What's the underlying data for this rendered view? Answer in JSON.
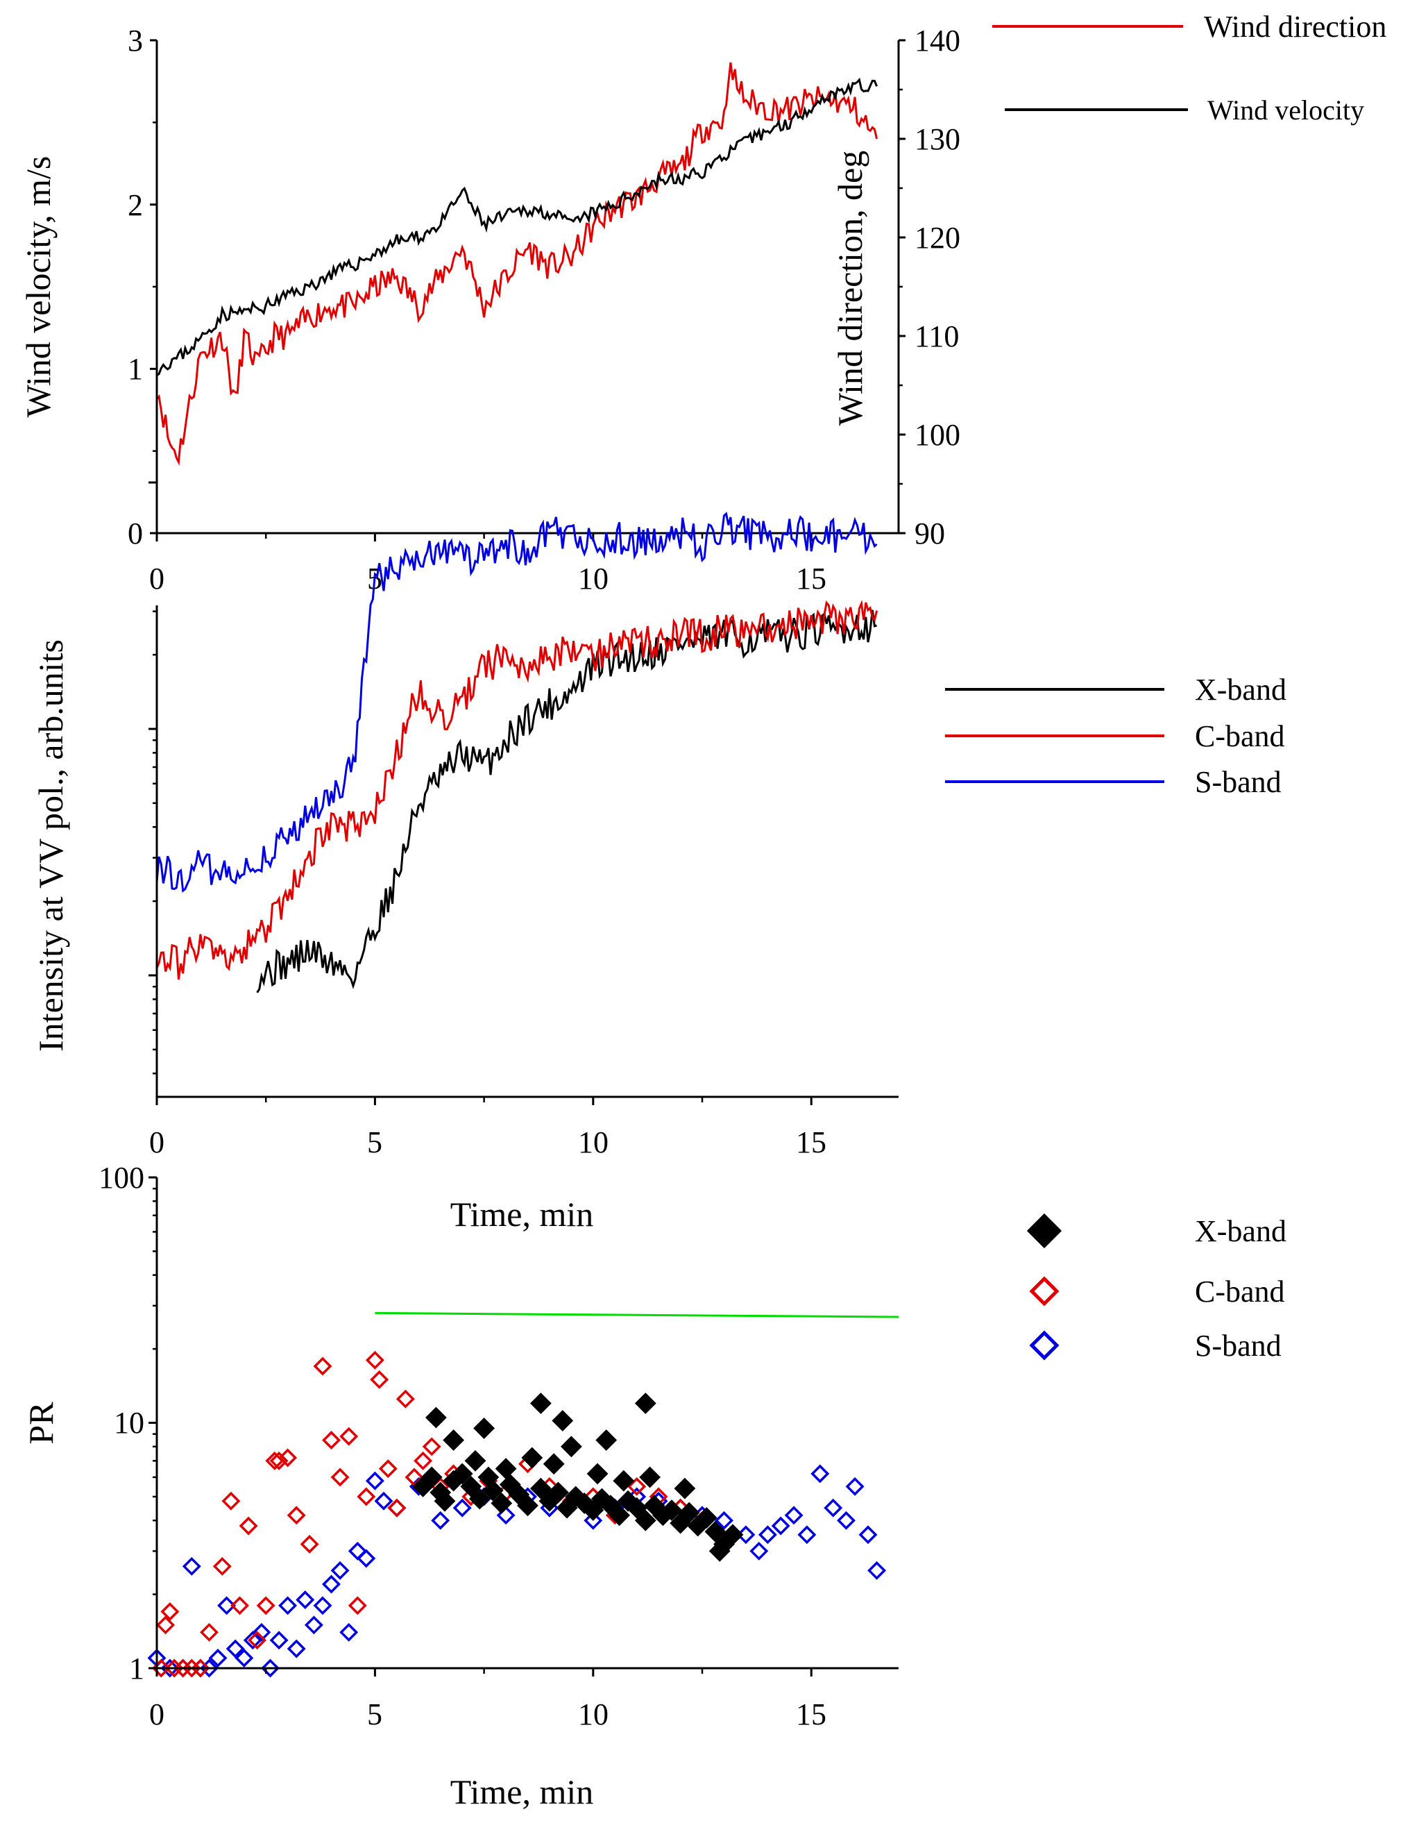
{
  "chart_data": [
    {
      "id": "wind",
      "type": "line",
      "xlabel": "",
      "ylabel": "Wind velocity, m/s",
      "y2label": "Wind direction, deg",
      "xlim": [
        0,
        17
      ],
      "ylim": [
        0,
        3
      ],
      "y2lim": [
        90,
        140
      ],
      "x_ticks": [
        "0",
        "5",
        "10",
        "15"
      ],
      "y_ticks": [
        "0",
        "1",
        "2",
        "3"
      ],
      "y2_ticks": [
        "90",
        "100",
        "110",
        "120",
        "130",
        "140"
      ],
      "legend": [
        {
          "name": "Wind direction",
          "color": "#e00000"
        },
        {
          "name": "Wind velocity",
          "color": "#000000"
        }
      ],
      "series": [
        {
          "name": "Wind velocity",
          "axis": "left",
          "color": "#000000",
          "x": [
            0,
            0.5,
            1,
            1.5,
            2,
            2.5,
            3,
            3.5,
            4,
            4.5,
            5,
            5.5,
            6,
            6.5,
            7,
            7.5,
            8,
            8.5,
            9,
            9.5,
            10,
            10.5,
            11,
            11.5,
            12,
            12.5,
            13,
            13.5,
            14,
            14.5,
            15,
            15.5,
            16,
            16.5
          ],
          "y": [
            1.0,
            1.07,
            1.18,
            1.33,
            1.35,
            1.38,
            1.45,
            1.5,
            1.58,
            1.63,
            1.7,
            1.78,
            1.8,
            1.88,
            2.08,
            1.88,
            1.93,
            1.97,
            1.95,
            1.88,
            1.95,
            2.0,
            2.08,
            2.15,
            2.15,
            2.2,
            2.3,
            2.38,
            2.45,
            2.5,
            2.6,
            2.68,
            2.72,
            2.72
          ]
        },
        {
          "name": "Wind direction",
          "axis": "right",
          "color": "#e00000",
          "x": [
            0,
            0.3,
            0.5,
            1,
            1.5,
            1.8,
            2,
            2.3,
            2.7,
            3,
            3.5,
            4,
            4.5,
            5,
            5.5,
            6,
            6.5,
            7,
            7.5,
            8,
            8.5,
            9,
            9.5,
            10,
            10.5,
            11,
            11.5,
            12,
            12.5,
            13,
            13.1,
            13.5,
            14,
            14.5,
            15,
            15.5,
            16,
            16.5
          ],
          "y": [
            105,
            99,
            98,
            108,
            110,
            103,
            110,
            107,
            110,
            110,
            112,
            113,
            113,
            115,
            116,
            113,
            116,
            119,
            113,
            116,
            119,
            117,
            118,
            121,
            123,
            124,
            126,
            127,
            131,
            132,
            137,
            134,
            133,
            133,
            134,
            134,
            133,
            130
          ]
        }
      ]
    },
    {
      "id": "intensity",
      "type": "line",
      "xlabel": "",
      "ylabel": "Intensity at VV pol., arb.units",
      "yscale": "log",
      "xlim": [
        0,
        17
      ],
      "x_ticks": [
        "0",
        "5",
        "10",
        "15"
      ],
      "legend": [
        {
          "name": "X-band",
          "color": "#000000"
        },
        {
          "name": "C-band",
          "color": "#e00000"
        },
        {
          "name": "S-band",
          "color": "#0000e0"
        }
      ],
      "series": [
        {
          "name": "X-band",
          "color": "#000000",
          "x": [
            2.3,
            3,
            3.5,
            4,
            4.5,
            5,
            5.5,
            6,
            6.5,
            7,
            7.5,
            8,
            8.5,
            9,
            9.5,
            10,
            10.5,
            11,
            11.5,
            12,
            12.5,
            13,
            13.5,
            14,
            14.5,
            15,
            15.5,
            16,
            16.5
          ],
          "y": [
            -1.0,
            -0.95,
            -0.9,
            -0.95,
            -1.0,
            -0.8,
            -0.6,
            -0.3,
            -0.2,
            -0.1,
            -0.15,
            -0.05,
            0.05,
            0.1,
            0.15,
            0.25,
            0.28,
            0.3,
            0.32,
            0.35,
            0.35,
            0.38,
            0.36,
            0.38,
            0.38,
            0.4,
            0.4,
            0.42,
            0.42
          ]
        },
        {
          "name": "C-band",
          "color": "#e00000",
          "x": [
            0,
            0.5,
            1,
            1.5,
            2,
            2.5,
            3,
            3.5,
            4,
            4.5,
            5,
            5.5,
            6,
            6.5,
            7,
            7.5,
            8,
            8.5,
            9,
            9.5,
            10,
            10.5,
            11,
            11.5,
            12,
            12.5,
            13,
            13.5,
            14,
            14.5,
            15,
            15.5,
            16,
            16.5
          ],
          "y": [
            -0.9,
            -0.95,
            -0.85,
            -0.95,
            -0.9,
            -0.8,
            -0.7,
            -0.5,
            -0.4,
            -0.4,
            -0.35,
            -0.1,
            0.15,
            0.05,
            0.1,
            0.25,
            0.3,
            0.25,
            0.3,
            0.32,
            0.3,
            0.35,
            0.35,
            0.35,
            0.38,
            0.38,
            0.4,
            0.4,
            0.42,
            0.42,
            0.43,
            0.45,
            0.45,
            0.48
          ]
        },
        {
          "name": "S-band",
          "color": "#0000e0",
          "x": [
            0,
            0.5,
            1,
            1.5,
            2,
            2.5,
            3,
            3.5,
            4,
            4.5,
            5,
            5.5,
            6,
            6.5,
            7,
            7.5,
            8,
            8.5,
            9,
            9.5,
            10,
            10.5,
            11,
            11.5,
            12,
            12.5,
            13,
            13.5,
            14,
            14.5,
            15,
            15.5,
            16,
            16.5
          ],
          "y": [
            -0.55,
            -0.6,
            -0.55,
            -0.6,
            -0.6,
            -0.5,
            -0.45,
            -0.35,
            -0.3,
            -0.15,
            0.6,
            0.65,
            0.7,
            0.72,
            0.7,
            0.7,
            0.75,
            0.7,
            0.8,
            0.78,
            0.75,
            0.78,
            0.75,
            0.78,
            0.8,
            0.75,
            0.82,
            0.8,
            0.78,
            0.8,
            0.78,
            0.78,
            0.78,
            0.75
          ]
        }
      ]
    },
    {
      "id": "pr",
      "type": "scatter",
      "xlabel": "Time, min",
      "xlabel_upper": "Time, min",
      "ylabel": "PR",
      "yscale": "log",
      "xlim": [
        0,
        17
      ],
      "ylim": [
        1,
        100
      ],
      "x_ticks": [
        "0",
        "5",
        "10",
        "15"
      ],
      "y_ticks": [
        "1",
        "10",
        "100"
      ],
      "legend": [
        {
          "name": "X-band",
          "color": "#000000",
          "marker": "filled-diamond"
        },
        {
          "name": "C-band",
          "color": "#e00000",
          "marker": "open-diamond"
        },
        {
          "name": "S-band",
          "color": "#0000e0",
          "marker": "open-diamond"
        }
      ],
      "reference_line": {
        "color": "#00dd00",
        "x": [
          5,
          17
        ],
        "y": [
          28,
          27
        ]
      },
      "series": [
        {
          "name": "X-band",
          "color": "#000000",
          "marker": "filled-diamond",
          "x": [
            6.1,
            6.3,
            6.5,
            6.6,
            6.8,
            7.0,
            7.2,
            7.4,
            7.6,
            7.7,
            7.9,
            8.1,
            8.3,
            8.5,
            8.8,
            9.0,
            9.2,
            9.4,
            9.6,
            9.8,
            10.0,
            10.2,
            10.4,
            10.6,
            10.8,
            11.0,
            11.2,
            11.4,
            11.6,
            11.8,
            12.0,
            12.2,
            12.4,
            12.6,
            12.8,
            13.0,
            13.2,
            6.4,
            6.8,
            7.3,
            8.0,
            8.6,
            9.1,
            9.5,
            10.1,
            10.7,
            11.3,
            12.1,
            12.9,
            7.5,
            8.8,
            9.3,
            10.3,
            11.2
          ],
          "y": [
            5.5,
            6.0,
            5.2,
            4.8,
            5.8,
            6.2,
            5.5,
            4.9,
            6.0,
            5.3,
            4.7,
            5.6,
            5.1,
            4.6,
            5.4,
            4.8,
            5.2,
            4.5,
            5.0,
            4.7,
            4.4,
            4.9,
            4.6,
            4.2,
            4.8,
            4.5,
            4.0,
            4.6,
            4.2,
            4.4,
            3.9,
            4.3,
            3.8,
            4.1,
            3.6,
            3.2,
            3.5,
            10.5,
            8.5,
            7.0,
            6.5,
            7.2,
            6.8,
            8.0,
            6.2,
            5.8,
            6.0,
            5.4,
            3.0,
            9.5,
            12.0,
            10.2,
            8.5,
            12.0
          ]
        },
        {
          "name": "C-band",
          "color": "#e00000",
          "marker": "open-diamond",
          "x": [
            0.1,
            0.2,
            0.3,
            0.4,
            0.6,
            0.8,
            1.0,
            1.2,
            1.5,
            1.7,
            1.9,
            2.1,
            2.3,
            2.5,
            2.7,
            2.8,
            3.0,
            3.2,
            3.5,
            3.8,
            4.0,
            4.2,
            4.4,
            4.6,
            4.8,
            5.0,
            5.1,
            5.3,
            5.5,
            5.7,
            5.9,
            6.1,
            6.3,
            6.5,
            6.8,
            7.2,
            7.6,
            8.0,
            8.5,
            9.0,
            9.5,
            10.0,
            10.5,
            11.0,
            11.5,
            12.0,
            12.5,
            13.0
          ],
          "y": [
            1.0,
            1.5,
            1.7,
            1.0,
            1.0,
            1.0,
            1.0,
            1.4,
            2.6,
            4.8,
            1.8,
            3.8,
            1.3,
            1.8,
            7.0,
            7.0,
            7.2,
            4.2,
            3.2,
            17.0,
            8.5,
            6.0,
            8.8,
            1.8,
            5.0,
            18.0,
            15.0,
            6.5,
            4.5,
            12.5,
            6.0,
            7.0,
            8.0,
            5.5,
            6.2,
            5.0,
            5.8,
            5.2,
            6.8,
            5.5,
            4.8,
            5.0,
            4.2,
            5.5,
            5.0,
            4.5,
            4.0,
            3.2
          ]
        },
        {
          "name": "S-band",
          "color": "#0000e0",
          "marker": "open-diamond",
          "x": [
            0.0,
            0.3,
            0.6,
            0.8,
            1.0,
            1.2,
            1.4,
            1.6,
            1.8,
            2.0,
            2.2,
            2.4,
            2.6,
            2.8,
            3.0,
            3.2,
            3.4,
            3.6,
            3.8,
            4.0,
            4.2,
            4.4,
            4.6,
            4.8,
            5.0,
            5.2,
            5.5,
            6.0,
            6.5,
            7.0,
            7.5,
            8.0,
            8.5,
            9.0,
            9.5,
            10.0,
            10.5,
            11.0,
            11.5,
            12.0,
            12.5,
            13.0,
            13.5,
            13.8,
            14.0,
            14.3,
            14.6,
            14.9,
            15.2,
            15.5,
            15.8,
            16.0,
            16.3,
            16.5
          ],
          "y": [
            1.1,
            1.0,
            1.0,
            2.6,
            1.0,
            1.0,
            1.1,
            1.8,
            1.2,
            1.1,
            1.3,
            1.4,
            1.0,
            1.3,
            1.8,
            1.2,
            1.9,
            1.5,
            1.8,
            2.2,
            2.5,
            1.4,
            3.0,
            2.8,
            5.8,
            4.8,
            4.5,
            5.5,
            4.0,
            4.5,
            5.0,
            4.2,
            5.0,
            4.5,
            4.8,
            4.0,
            4.5,
            5.0,
            4.8,
            4.5,
            4.2,
            4.0,
            3.5,
            3.0,
            3.5,
            3.8,
            4.2,
            3.5,
            6.2,
            4.5,
            4.0,
            5.5,
            3.5,
            2.5
          ]
        }
      ]
    }
  ]
}
